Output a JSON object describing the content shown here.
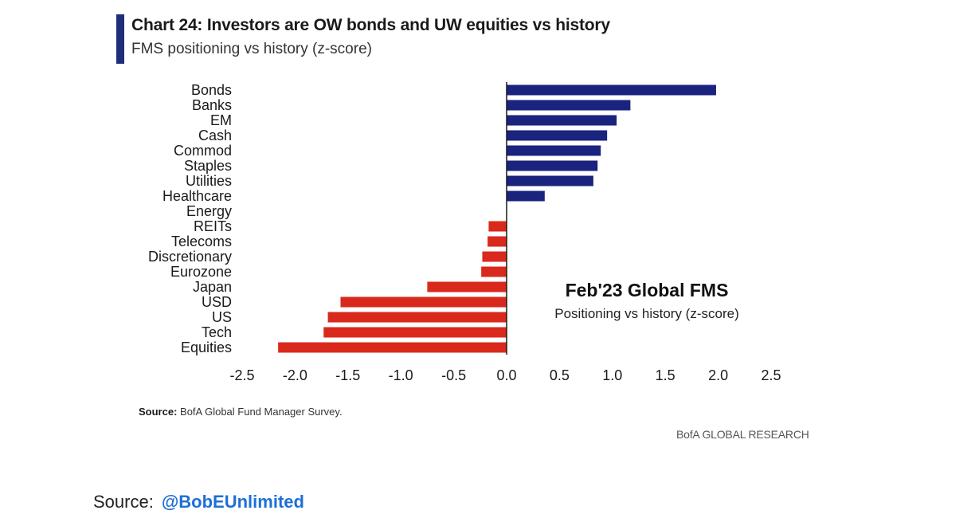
{
  "header": {
    "title": "Chart 24: Investors are OW bonds and UW equities vs history",
    "subtitle": "FMS positioning vs history (z-score)"
  },
  "colors": {
    "accent": "#1f2d7a",
    "positive": "#1a237e",
    "negative": "#d9291c"
  },
  "chart_data": {
    "type": "bar",
    "orientation": "horizontal",
    "categories": [
      "Bonds",
      "Banks",
      "EM",
      "Cash",
      "Commod",
      "Staples",
      "Utilities",
      "Healthcare",
      "Energy",
      "REITs",
      "Telecoms",
      "Discretionary",
      "Eurozone",
      "Japan",
      "USD",
      "US",
      "Tech",
      "Equities"
    ],
    "values": [
      1.98,
      1.17,
      1.04,
      0.95,
      0.89,
      0.86,
      0.82,
      0.36,
      0.0,
      -0.17,
      -0.18,
      -0.23,
      -0.24,
      -0.75,
      -1.57,
      -1.69,
      -1.73,
      -2.16
    ],
    "xlim": [
      -2.5,
      2.5
    ],
    "xticks": [
      -2.5,
      -2.0,
      -1.5,
      -1.0,
      -0.5,
      0.0,
      0.5,
      1.0,
      1.5,
      2.0,
      2.5
    ],
    "xtick_labels": [
      "-2.5",
      "-2.0",
      "-1.5",
      "-1.0",
      "-0.5",
      "0.0",
      "0.5",
      "1.0",
      "1.5",
      "2.0",
      "2.5"
    ],
    "grid": false,
    "annotation": {
      "title": "Feb'23 Global FMS",
      "subtitle": "Positioning vs history (z-score)"
    }
  },
  "footer": {
    "source_label": "Source:",
    "source_text": " BofA Global Fund Manager Survey.",
    "brand": "BofA GLOBAL RESEARCH"
  },
  "credit": {
    "label": "Source:",
    "handle": "@BobEUnlimited"
  }
}
